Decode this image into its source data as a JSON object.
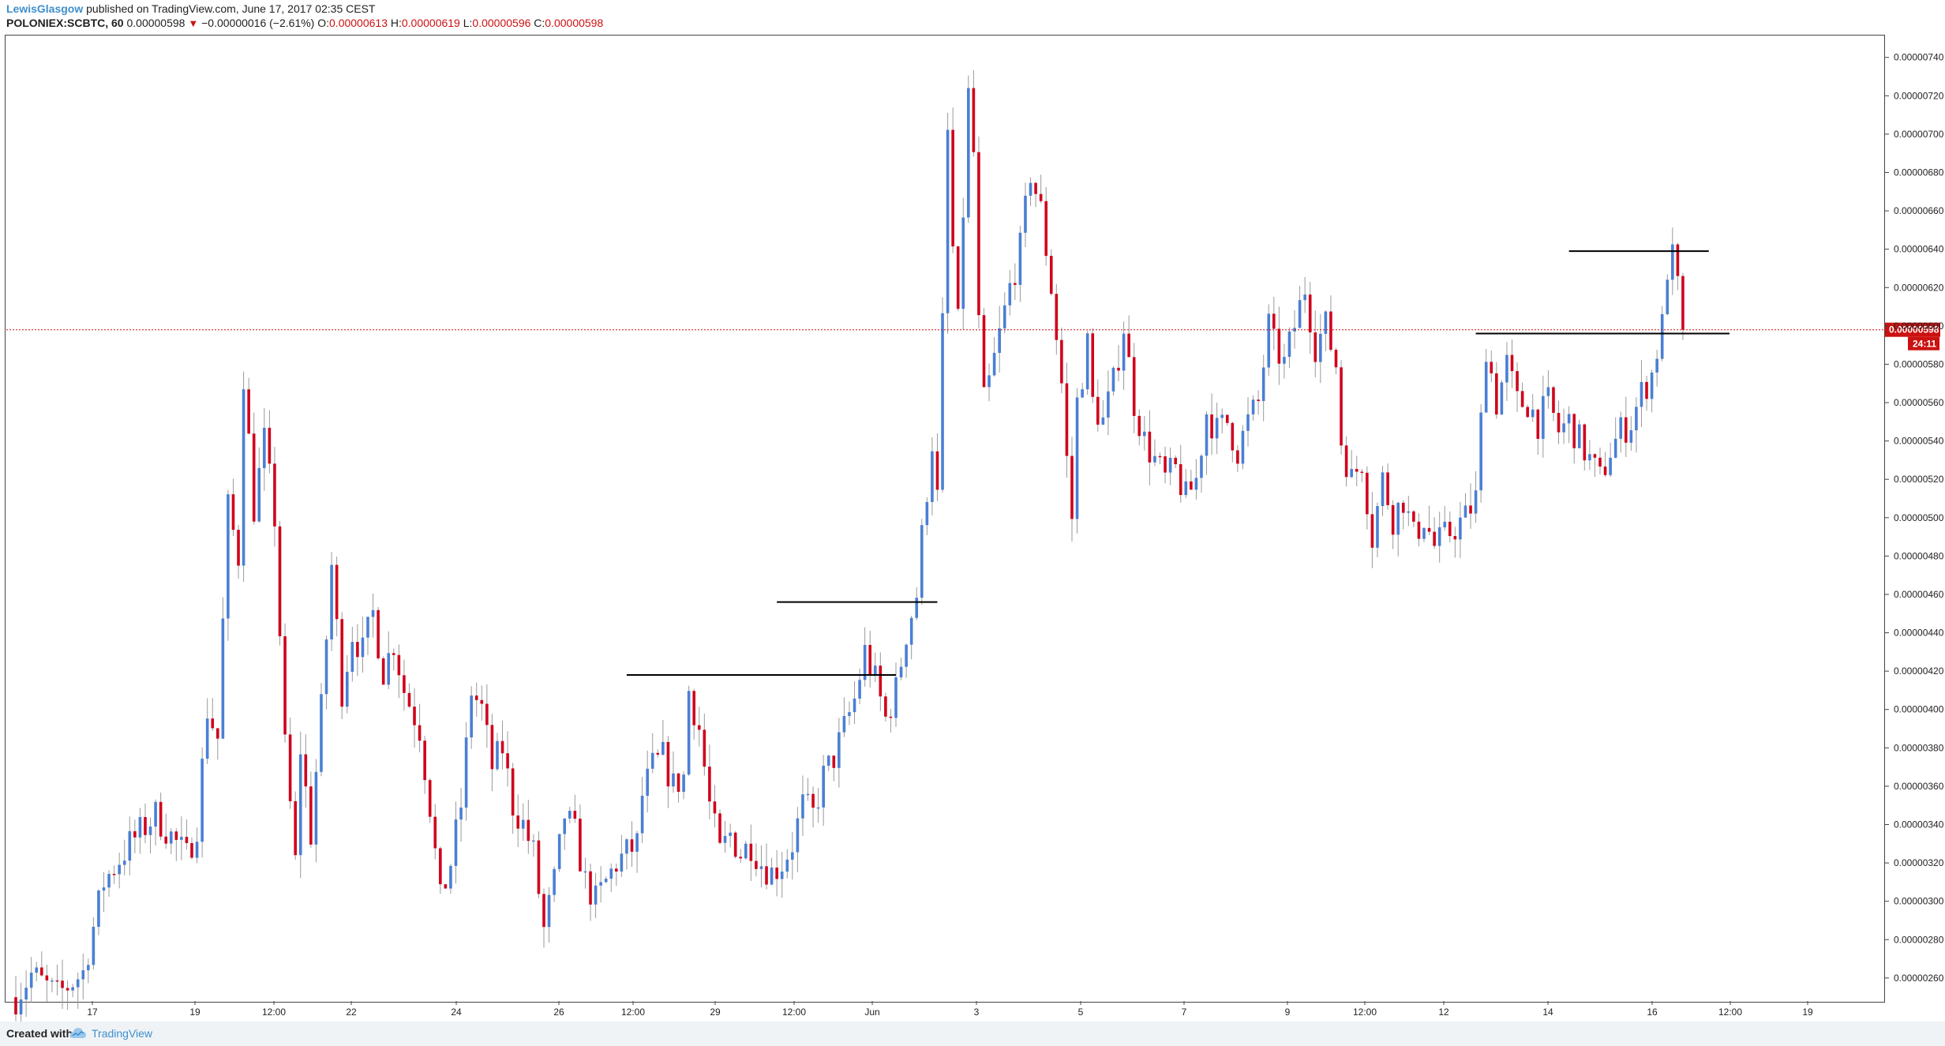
{
  "header": {
    "author": "LewisGlasgow",
    "published": "published on TradingView.com, June 17, 2017 02:35 CEST",
    "symbol": "POLONIEX:SCBTC, 60",
    "last": "0.00000598",
    "change": "−0.00000016 (−2.61%)",
    "o_label": "O:",
    "o": "0.00000613",
    "h_label": "H:",
    "h": "0.00000619",
    "l_label": "L:",
    "l": "0.00000596",
    "c_label": "C:",
    "c": "0.00000598"
  },
  "footer": {
    "created": "Created with",
    "brand": "TradingView"
  },
  "colors": {
    "up": "#4a7fd4",
    "down": "#d0021b",
    "wick": "#999999",
    "price_line": "#cc1111",
    "level": "#000000"
  },
  "chart_data": {
    "type": "candlestick",
    "title": "POLONIEX:SCBTC, 60",
    "ylim": [
      2.48e-06,
      7.51e-06
    ],
    "y_ticks": [
      "0.00000740",
      "0.00000720",
      "0.00000700",
      "0.00000680",
      "0.00000660",
      "0.00000640",
      "0.00000620",
      "0.00000600",
      "0.00000580",
      "0.00000560",
      "0.00000540",
      "0.00000520",
      "0.00000500",
      "0.00000480",
      "0.00000460",
      "0.00000440",
      "0.00000420",
      "0.00000400",
      "0.00000380",
      "0.00000360",
      "0.00000340",
      "0.00000320",
      "0.00000300",
      "0.00000280",
      "0.00000260"
    ],
    "x_ticks": [
      "17",
      "19",
      "12:00",
      "22",
      "24",
      "26",
      "12:00",
      "29",
      "12:00",
      "Jun",
      "3",
      "5",
      "7",
      "9",
      "12:00",
      "12",
      "14",
      "16",
      "12:00",
      "19"
    ],
    "price_label": "0.00000598",
    "countdown": "24:11",
    "last_price": 5.98e-06,
    "path": [
      [
        0,
        2.5e-06
      ],
      [
        3,
        2.62e-06
      ],
      [
        8,
        2.51e-06
      ],
      [
        13,
        2.63e-06
      ],
      [
        17,
        3.1e-06
      ],
      [
        22,
        3.3e-06
      ],
      [
        27,
        3.45e-06
      ],
      [
        33,
        3.23e-06
      ],
      [
        35,
        3.4e-06
      ],
      [
        37,
        4e-06
      ],
      [
        39,
        3.85e-06
      ],
      [
        41,
        5.05e-06
      ],
      [
        43,
        4.8e-06
      ],
      [
        44,
        5.75e-06
      ],
      [
        46,
        5.05e-06
      ],
      [
        48,
        5.4e-06
      ],
      [
        50,
        5e-06
      ],
      [
        52,
        3.8e-06
      ],
      [
        54,
        3.2e-06
      ],
      [
        55,
        3.8e-06
      ],
      [
        57,
        3.35e-06
      ],
      [
        59,
        4e-06
      ],
      [
        61,
        4.75e-06
      ],
      [
        63,
        4.1e-06
      ],
      [
        65,
        4.4e-06
      ],
      [
        67,
        4.3e-06
      ],
      [
        69,
        4.5e-06
      ],
      [
        71,
        4.2e-06
      ],
      [
        73,
        4.35e-06
      ],
      [
        75,
        4.1e-06
      ],
      [
        78,
        3.9e-06
      ],
      [
        80,
        3.5e-06
      ],
      [
        82,
        3e-06
      ],
      [
        84,
        3.2e-06
      ],
      [
        86,
        3.5e-06
      ],
      [
        88,
        4.1e-06
      ],
      [
        90,
        4e-06
      ],
      [
        92,
        3.7e-06
      ],
      [
        94,
        3.8e-06
      ],
      [
        96,
        3.5e-06
      ],
      [
        98,
        3.4e-06
      ],
      [
        100,
        3.25e-06
      ],
      [
        102,
        2.85e-06
      ],
      [
        104,
        3.1e-06
      ],
      [
        106,
        3.45e-06
      ],
      [
        108,
        3.35e-06
      ],
      [
        110,
        3.1e-06
      ],
      [
        112,
        3e-06
      ],
      [
        114,
        3.1e-06
      ],
      [
        116,
        3.2e-06
      ],
      [
        118,
        3.25e-06
      ],
      [
        120,
        3.3e-06
      ],
      [
        121,
        3.55e-06
      ],
      [
        123,
        3.7e-06
      ],
      [
        125,
        3.75e-06
      ],
      [
        127,
        3.6e-06
      ],
      [
        129,
        3.65e-06
      ],
      [
        130,
        4.1e-06
      ],
      [
        132,
        3.9e-06
      ],
      [
        134,
        3.5e-06
      ],
      [
        136,
        3.25e-06
      ],
      [
        138,
        3.35e-06
      ],
      [
        140,
        3.25e-06
      ],
      [
        142,
        3.3e-06
      ],
      [
        144,
        3.2e-06
      ],
      [
        146,
        3.15e-06
      ],
      [
        148,
        3.2e-06
      ],
      [
        150,
        3.3e-06
      ],
      [
        152,
        3.5e-06
      ],
      [
        154,
        3.45e-06
      ],
      [
        156,
        3.65e-06
      ],
      [
        158,
        3.75e-06
      ],
      [
        160,
        3.9e-06
      ],
      [
        162,
        4.05e-06
      ],
      [
        164,
        4.3e-06
      ],
      [
        166,
        4.15e-06
      ],
      [
        168,
        3.95e-06
      ],
      [
        170,
        4.1e-06
      ],
      [
        172,
        4.4e-06
      ],
      [
        174,
        4.6e-06
      ],
      [
        175,
        4.9e-06
      ],
      [
        177,
        5.4e-06
      ],
      [
        178,
        5.1e-06
      ],
      [
        179,
        6e-06
      ],
      [
        180,
        7e-06
      ],
      [
        181,
        6.4e-06
      ],
      [
        182,
        6e-06
      ],
      [
        183,
        6.6e-06
      ],
      [
        184,
        7.2e-06
      ],
      [
        185,
        6.9e-06
      ],
      [
        186,
        6e-06
      ],
      [
        187,
        5.6e-06
      ],
      [
        188,
        5.7e-06
      ],
      [
        190,
        5.95e-06
      ],
      [
        192,
        6.2e-06
      ],
      [
        194,
        6.4e-06
      ],
      [
        196,
        6.8e-06
      ],
      [
        198,
        6.6e-06
      ],
      [
        200,
        6.2e-06
      ],
      [
        202,
        5.7e-06
      ],
      [
        203,
        5.3e-06
      ],
      [
        204,
        5e-06
      ],
      [
        205,
        5.6e-06
      ],
      [
        207,
        5.9e-06
      ],
      [
        208,
        5.6e-06
      ],
      [
        210,
        5.5e-06
      ],
      [
        212,
        5.7e-06
      ],
      [
        214,
        6e-06
      ],
      [
        216,
        5.6e-06
      ],
      [
        218,
        5.4e-06
      ],
      [
        220,
        5.3e-06
      ],
      [
        222,
        5.2e-06
      ],
      [
        224,
        5.25e-06
      ],
      [
        226,
        5.1e-06
      ],
      [
        228,
        5.2e-06
      ],
      [
        230,
        5.55e-06
      ],
      [
        232,
        5.45e-06
      ],
      [
        234,
        5.5e-06
      ],
      [
        236,
        5.35e-06
      ],
      [
        238,
        5.5e-06
      ],
      [
        240,
        5.6e-06
      ],
      [
        241,
        5.8e-06
      ],
      [
        242,
        6e-06
      ],
      [
        243,
        5.9e-06
      ],
      [
        245,
        5.8e-06
      ],
      [
        247,
        6e-06
      ],
      [
        249,
        6.2e-06
      ],
      [
        251,
        5.9e-06
      ],
      [
        253,
        6e-06
      ],
      [
        255,
        5.8e-06
      ],
      [
        256,
        5.4e-06
      ],
      [
        258,
        5.2e-06
      ],
      [
        260,
        5.3e-06
      ],
      [
        262,
        4.9e-06
      ],
      [
        264,
        5.2e-06
      ],
      [
        266,
        5e-06
      ],
      [
        268,
        5.1e-06
      ],
      [
        270,
        4.9e-06
      ],
      [
        272,
        5e-06
      ],
      [
        274,
        4.85e-06
      ],
      [
        276,
        4.9e-06
      ],
      [
        278,
        4.95e-06
      ],
      [
        280,
        5e-06
      ],
      [
        282,
        5.1e-06
      ],
      [
        283,
        5.5e-06
      ],
      [
        284,
        5.9e-06
      ],
      [
        286,
        5.6e-06
      ],
      [
        288,
        5.8e-06
      ],
      [
        290,
        5.6e-06
      ],
      [
        292,
        5.6e-06
      ],
      [
        294,
        5.5e-06
      ],
      [
        296,
        5.6e-06
      ],
      [
        298,
        5.45e-06
      ],
      [
        300,
        5.5e-06
      ],
      [
        302,
        5.4e-06
      ],
      [
        304,
        5.3e-06
      ],
      [
        306,
        5.2e-06
      ],
      [
        308,
        5.35e-06
      ],
      [
        310,
        5.45e-06
      ],
      [
        312,
        5.5e-06
      ],
      [
        314,
        5.65e-06
      ],
      [
        316,
        5.75e-06
      ],
      [
        318,
        6e-06
      ],
      [
        319,
        6.3e-06
      ],
      [
        320,
        6.35e-06
      ],
      [
        321,
        6.2e-06
      ],
      [
        322,
        5.98e-06
      ]
    ],
    "levels": [
      {
        "value": 4.18e-06,
        "x": [
          118,
          170
        ]
      },
      {
        "value": 4.56e-06,
        "x": [
          147,
          178
        ]
      },
      {
        "value": 6.39e-06,
        "x": [
          300,
          327
        ]
      },
      {
        "value": 5.96e-06,
        "x": [
          282,
          331
        ]
      }
    ]
  }
}
